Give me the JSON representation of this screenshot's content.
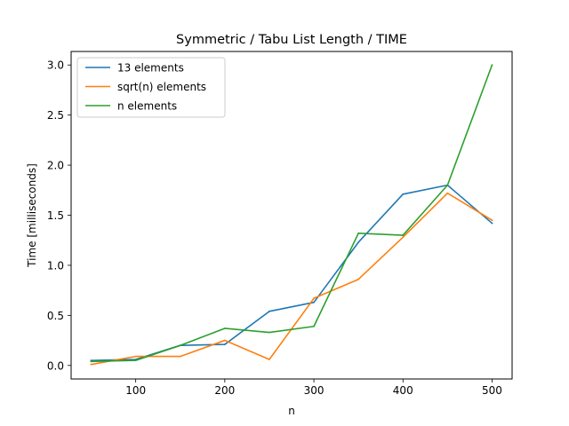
{
  "chart_data": {
    "type": "line",
    "title": "Symmetric / Tabu List Length / TIME",
    "xlabel": "n",
    "ylabel": "Time [milliseconds]",
    "xlim": [
      27.5,
      522.5
    ],
    "ylim": [
      -0.135,
      3.135
    ],
    "xticks": [
      100,
      200,
      300,
      400,
      500
    ],
    "yticks": [
      0.0,
      0.5,
      1.0,
      1.5,
      2.0,
      2.5,
      3.0
    ],
    "xtick_labels": [
      "100",
      "200",
      "300",
      "400",
      "500"
    ],
    "ytick_labels": [
      "0.0",
      "0.5",
      "1.0",
      "1.5",
      "2.0",
      "2.5",
      "3.0"
    ],
    "grid": false,
    "legend_position": "top-left",
    "x": [
      50,
      100,
      150,
      200,
      250,
      300,
      350,
      400,
      450,
      500
    ],
    "series": [
      {
        "name": "13 elements",
        "color": "#1f77b4",
        "values": [
          0.05,
          0.06,
          0.2,
          0.21,
          0.54,
          0.63,
          1.23,
          1.71,
          1.8,
          1.42
        ]
      },
      {
        "name": "sqrt(n) elements",
        "color": "#ff7f0e",
        "values": [
          0.01,
          0.09,
          0.09,
          0.25,
          0.06,
          0.67,
          0.86,
          1.28,
          1.72,
          1.45
        ]
      },
      {
        "name": "n elements",
        "color": "#2ca02c",
        "values": [
          0.04,
          0.05,
          0.2,
          0.37,
          0.33,
          0.39,
          1.32,
          1.3,
          1.8,
          3.0
        ]
      }
    ]
  }
}
